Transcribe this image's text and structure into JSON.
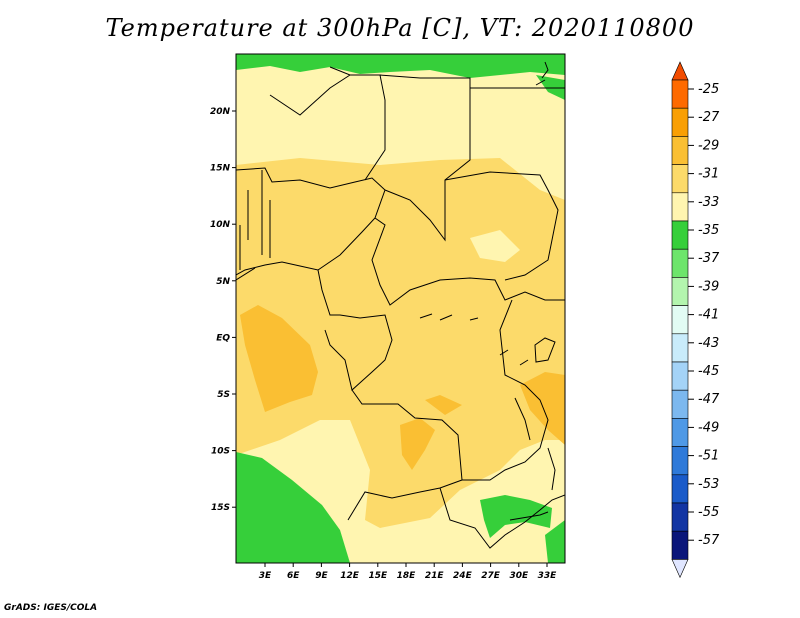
{
  "title": "Temperature at 300hPa [C], VT: 2020110800",
  "footer": "GrADS: IGES/COLA",
  "map": {
    "lat_labels": [
      "20N",
      "15N",
      "10N",
      "5N",
      "EQ",
      "5S",
      "10S",
      "15S"
    ],
    "lon_labels": [
      "3E",
      "6E",
      "9E",
      "12E",
      "15E",
      "18E",
      "21E",
      "24E",
      "27E",
      "30E",
      "33E"
    ]
  },
  "colorbar": {
    "labels": [
      "-25",
      "-27",
      "-29",
      "-31",
      "-33",
      "-35",
      "-37",
      "-39",
      "-41",
      "-43",
      "-45",
      "-47",
      "-49",
      "-51",
      "-53",
      "-55",
      "-57"
    ],
    "colors": [
      "#fe6a00",
      "#f99f04",
      "#fabf33",
      "#fcda6a",
      "#fff5b0",
      "#36cf3a",
      "#6de56b",
      "#b3f5ae",
      "#e2fcf4",
      "#c9ecfb",
      "#a4d3f7",
      "#7cb8ef",
      "#4f99e6",
      "#2f7ad9",
      "#1a5bc9",
      "#1235a3",
      "#0a167a"
    ],
    "top_color": "#f24c00",
    "bottom_color": "#e0e6ff"
  }
}
